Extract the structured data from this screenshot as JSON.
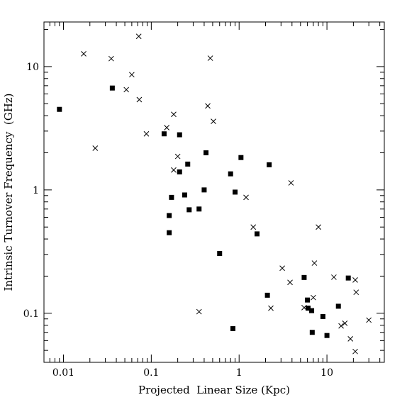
{
  "chart_data": {
    "type": "scatter",
    "title": "",
    "xlabel": "Projected  Linear Size (Kpc)",
    "ylabel": "Intrinsic Turnover Frequency  (GHz)",
    "xscale": "log",
    "yscale": "log",
    "xlim": [
      0.006,
      45
    ],
    "ylim": [
      0.04,
      23
    ],
    "grid": false,
    "x_major_ticks": [
      {
        "value": 0.01,
        "label": "0.01"
      },
      {
        "value": 0.1,
        "label": "0.1"
      },
      {
        "value": 1,
        "label": "1"
      },
      {
        "value": 10,
        "label": "10"
      }
    ],
    "y_major_ticks": [
      {
        "value": 0.1,
        "label": "0.1"
      },
      {
        "value": 1,
        "label": "1"
      },
      {
        "value": 10,
        "label": "10"
      }
    ],
    "series": [
      {
        "marker": "filled-square",
        "points": [
          [
            0.009,
            4.5
          ],
          [
            0.036,
            6.7
          ],
          [
            0.14,
            2.85
          ],
          [
            0.21,
            2.8
          ],
          [
            0.26,
            1.62
          ],
          [
            0.21,
            1.4
          ],
          [
            0.42,
            2.0
          ],
          [
            0.17,
            0.87
          ],
          [
            0.24,
            0.91
          ],
          [
            0.4,
            1.0
          ],
          [
            0.27,
            0.69
          ],
          [
            0.35,
            0.7
          ],
          [
            0.16,
            0.62
          ],
          [
            0.16,
            0.45
          ],
          [
            0.8,
            1.35
          ],
          [
            1.05,
            1.83
          ],
          [
            0.9,
            0.96
          ],
          [
            2.2,
            1.6
          ],
          [
            1.6,
            0.44
          ],
          [
            0.6,
            0.305
          ],
          [
            2.1,
            0.14
          ],
          [
            0.85,
            0.075
          ],
          [
            5.5,
            0.195
          ],
          [
            6.0,
            0.128
          ],
          [
            6.1,
            0.11
          ],
          [
            6.7,
            0.105
          ],
          [
            6.8,
            0.07
          ],
          [
            9.0,
            0.094
          ],
          [
            10.0,
            0.066
          ],
          [
            13.5,
            0.114
          ],
          [
            17.5,
            0.193
          ]
        ]
      },
      {
        "marker": "cross",
        "points": [
          [
            0.017,
            12.7
          ],
          [
            0.035,
            11.6
          ],
          [
            0.072,
            17.6
          ],
          [
            0.06,
            8.6
          ],
          [
            0.052,
            6.5
          ],
          [
            0.073,
            5.4
          ],
          [
            0.023,
            2.18
          ],
          [
            0.088,
            2.85
          ],
          [
            0.15,
            3.2
          ],
          [
            0.18,
            4.1
          ],
          [
            0.47,
            11.7
          ],
          [
            0.44,
            4.8
          ],
          [
            0.51,
            3.6
          ],
          [
            0.2,
            1.87
          ],
          [
            0.18,
            1.45
          ],
          [
            1.2,
            0.87
          ],
          [
            3.9,
            1.14
          ],
          [
            1.45,
            0.5
          ],
          [
            8.0,
            0.5
          ],
          [
            7.2,
            0.255
          ],
          [
            3.1,
            0.232
          ],
          [
            3.8,
            0.178
          ],
          [
            12.0,
            0.196
          ],
          [
            21.0,
            0.186
          ],
          [
            21.5,
            0.148
          ],
          [
            5.5,
            0.111
          ],
          [
            7.0,
            0.134
          ],
          [
            14.5,
            0.079
          ],
          [
            16.0,
            0.083
          ],
          [
            30.0,
            0.088
          ],
          [
            18.5,
            0.062
          ],
          [
            21.0,
            0.049
          ],
          [
            2.3,
            0.11
          ],
          [
            0.35,
            0.103
          ]
        ]
      }
    ]
  }
}
